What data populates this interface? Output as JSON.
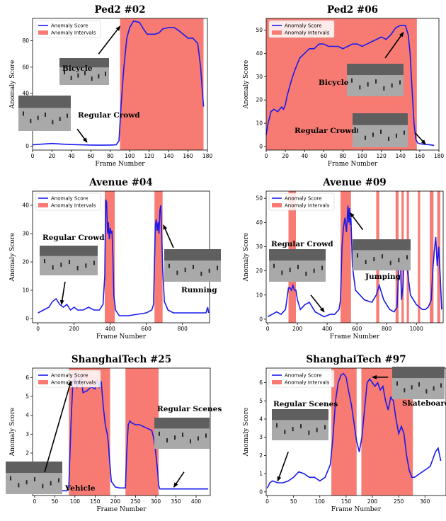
{
  "legend": {
    "score_label": "Anomaly Score",
    "interval_label": "Anomaly Intervals"
  },
  "colors": {
    "score": "#1a1aee",
    "interval": "#f77b72"
  },
  "xlabel": "Frame Number",
  "ylabel": "Anomaly Score",
  "chart_data": [
    {
      "type": "line",
      "title": "Ped2 #02",
      "xlim": [
        0,
        180
      ],
      "ylim": [
        -3,
        97
      ],
      "xticks": [
        0,
        20,
        40,
        60,
        80,
        100,
        120,
        140,
        160,
        180
      ],
      "yticks": [
        0,
        20,
        40,
        60,
        80
      ],
      "intervals": [
        [
          90,
          176
        ]
      ],
      "x": [
        0,
        10,
        20,
        30,
        40,
        50,
        60,
        70,
        80,
        86,
        89,
        91,
        94,
        97,
        100,
        104,
        110,
        115,
        118,
        122,
        126,
        130,
        134,
        140,
        146,
        150,
        155,
        160,
        165,
        170,
        173,
        175,
        176
      ],
      "y": [
        1,
        1.5,
        2,
        1.5,
        1.2,
        1,
        0.8,
        0.7,
        0.8,
        1,
        4,
        30,
        60,
        82,
        90,
        95,
        94,
        88,
        85,
        85,
        85,
        86,
        89,
        90,
        90,
        88,
        85,
        82,
        82,
        78,
        60,
        40,
        30
      ],
      "annotations": [
        {
          "text": "Bicycle",
          "arrow_from": [
            68,
            70
          ],
          "arrow_to": [
            90,
            91
          ]
        },
        {
          "text": "Regular Crowd",
          "arrow_from": [
            46,
            13
          ],
          "arrow_to": [
            56,
            3
          ]
        }
      ]
    },
    {
      "type": "line",
      "title": "Ped2 #06",
      "xlim": [
        0,
        180
      ],
      "ylim": [
        -1.5,
        55
      ],
      "xticks": [
        0,
        20,
        40,
        60,
        80,
        100,
        120,
        140,
        160,
        180
      ],
      "yticks": [
        0,
        10,
        20,
        30,
        40,
        50
      ],
      "intervals": [
        [
          0,
          157
        ]
      ],
      "x": [
        0,
        2,
        5,
        8,
        12,
        16,
        18,
        20,
        22,
        26,
        30,
        35,
        40,
        45,
        50,
        55,
        60,
        65,
        70,
        75,
        80,
        85,
        90,
        95,
        100,
        105,
        110,
        115,
        120,
        125,
        130,
        135,
        140,
        145,
        148,
        150,
        152,
        154,
        156,
        158,
        160,
        165,
        170,
        175
      ],
      "y": [
        5,
        10,
        15,
        16,
        15,
        17,
        16,
        18,
        22,
        28,
        33,
        38,
        40,
        42,
        42,
        44,
        44,
        43,
        43,
        43,
        42,
        43,
        44,
        44,
        43,
        44,
        45,
        46,
        47,
        46,
        48,
        51,
        52,
        52,
        48,
        40,
        25,
        10,
        3,
        1.5,
        1.2,
        1,
        0.8,
        0.5
      ],
      "annotations": [
        {
          "text": "Bicycle",
          "arrow_from": [
            124,
            38
          ],
          "arrow_to": [
            143,
            49
          ]
        },
        {
          "text": "Regular Crowd",
          "arrow_from": [
            155,
            6
          ],
          "arrow_to": [
            166,
            1
          ]
        }
      ]
    },
    {
      "type": "line",
      "title": "Avenue #04",
      "xlim": [
        -30,
        950
      ],
      "ylim": [
        -1.5,
        45
      ],
      "xticks": [
        0,
        200,
        400,
        600,
        800
      ],
      "yticks": [
        0,
        10,
        20,
        30,
        40
      ],
      "intervals": [
        [
          370,
          425
        ],
        [
          645,
          690
        ]
      ],
      "x": [
        0,
        30,
        60,
        80,
        100,
        120,
        140,
        160,
        180,
        200,
        220,
        250,
        280,
        310,
        340,
        360,
        370,
        375,
        380,
        385,
        390,
        395,
        400,
        405,
        410,
        415,
        420,
        430,
        450,
        500,
        550,
        600,
        630,
        640,
        645,
        650,
        655,
        660,
        665,
        670,
        675,
        680,
        685,
        690,
        700,
        720,
        750,
        800,
        850,
        900,
        930,
        940,
        945
      ],
      "y": [
        2,
        3,
        4,
        6,
        7,
        5,
        4,
        5,
        3,
        4,
        3,
        3,
        4,
        3,
        3,
        5,
        15,
        42,
        41,
        30,
        34,
        28,
        32,
        30,
        31,
        22,
        8,
        3,
        1,
        1,
        1.5,
        2,
        3,
        5,
        20,
        33,
        35,
        31,
        34,
        30,
        38,
        40,
        30,
        18,
        6,
        3,
        2,
        2,
        2,
        2,
        2,
        4,
        2
      ],
      "annotations": [
        {
          "text": "Regular Crowd",
          "arrow_from": [
            150,
            13
          ],
          "arrow_to": [
            130,
            5
          ]
        },
        {
          "text": "Running",
          "arrow_from": [
            750,
            25
          ],
          "arrow_to": [
            695,
            33
          ]
        }
      ]
    },
    {
      "type": "line",
      "title": "Avenue #09",
      "xlim": [
        -10,
        1180
      ],
      "ylim": [
        -1.5,
        53
      ],
      "xticks": [
        0,
        200,
        400,
        600,
        800,
        1000
      ],
      "yticks": [
        0,
        10,
        20,
        30,
        40,
        50
      ],
      "intervals": [
        [
          140,
          190
        ],
        [
          490,
          560
        ],
        [
          730,
          750
        ],
        [
          860,
          880
        ],
        [
          900,
          915
        ],
        [
          935,
          950
        ],
        [
          1010,
          1025
        ],
        [
          1090,
          1115
        ],
        [
          1140,
          1160
        ]
      ],
      "x": [
        0,
        30,
        60,
        90,
        120,
        140,
        150,
        160,
        170,
        180,
        190,
        200,
        220,
        250,
        280,
        300,
        320,
        350,
        380,
        400,
        420,
        450,
        480,
        490,
        500,
        510,
        520,
        530,
        540,
        545,
        550,
        555,
        560,
        570,
        590,
        620,
        650,
        700,
        730,
        750,
        780,
        820,
        850,
        870,
        880,
        890,
        900,
        910,
        920,
        930,
        940,
        950,
        960,
        980,
        1000,
        1020,
        1040,
        1060,
        1080,
        1100,
        1110,
        1120,
        1130,
        1140,
        1150,
        1160,
        1170
      ],
      "y": [
        1,
        2,
        3,
        2,
        4,
        13,
        13,
        12,
        14,
        12,
        12,
        8,
        4,
        6,
        7,
        5,
        3,
        2,
        1,
        1.5,
        2,
        2,
        4,
        8,
        30,
        38,
        42,
        36,
        47,
        40,
        46,
        39,
        42,
        22,
        12,
        10,
        8,
        7,
        10,
        14,
        8,
        4,
        3,
        5,
        20,
        28,
        8,
        14,
        31,
        30,
        20,
        15,
        10,
        8,
        6,
        5,
        4,
        4,
        5,
        8,
        20,
        28,
        34,
        22,
        30,
        18,
        4
      ],
      "annotations": [
        {
          "text": "Regular Crowd",
          "arrow_from": [
            290,
            10
          ],
          "arrow_to": [
            380,
            3
          ]
        },
        {
          "text": "Jumping",
          "arrow_from": [
            640,
            37
          ],
          "arrow_to": [
            555,
            44
          ]
        }
      ]
    },
    {
      "type": "line",
      "title": "ShanghaiTech #25",
      "xlim": [
        -5,
        435
      ],
      "ylim": [
        -0.25,
        6.5
      ],
      "xticks": [
        0,
        50,
        100,
        150,
        200,
        250,
        300,
        350,
        400
      ],
      "yticks": [
        0,
        1,
        2,
        3,
        4,
        5,
        6
      ],
      "intervals": [
        [
          85,
          187
        ],
        [
          225,
          307
        ]
      ],
      "x": [
        0,
        40,
        80,
        85,
        90,
        95,
        100,
        105,
        110,
        115,
        120,
        130,
        140,
        150,
        155,
        160,
        165,
        170,
        175,
        180,
        183,
        185,
        190,
        200,
        210,
        220,
        225,
        228,
        232,
        236,
        240,
        250,
        260,
        270,
        280,
        290,
        295,
        300,
        305,
        307,
        310,
        330,
        360,
        400,
        430
      ],
      "y": [
        0,
        0,
        0,
        0.3,
        3.5,
        5.8,
        6,
        5.5,
        5.8,
        6,
        5.2,
        5.3,
        5.5,
        5.4,
        5.9,
        5.5,
        5.8,
        4.5,
        3.5,
        3,
        2.5,
        1.8,
        0.5,
        0.2,
        0.15,
        0.15,
        0.15,
        2,
        3.5,
        3.7,
        3.6,
        3.5,
        3.5,
        3.4,
        3.3,
        3.2,
        2.8,
        2.0,
        1.0,
        0.3,
        0.1,
        0.1,
        0.1,
        0.1,
        0.1
      ],
      "annotations": [
        {
          "text": "Vehicle",
          "arrow_from": [
            25,
            1
          ],
          "arrow_to": [
            90,
            5.8
          ]
        },
        {
          "text": "Regular Scenes",
          "arrow_from": [
            370,
            1
          ],
          "arrow_to": [
            345,
            0.2
          ]
        }
      ]
    },
    {
      "type": "line",
      "title": "ShanghaiTech #97",
      "xlim": [
        -2,
        340
      ],
      "ylim": [
        -0.2,
        6.8
      ],
      "xticks": [
        0,
        50,
        100,
        150,
        200,
        250,
        300
      ],
      "yticks": [
        0,
        1,
        2,
        3,
        4,
        5,
        6
      ],
      "intervals": [
        [
          122,
          170
        ],
        [
          179,
          277
        ]
      ],
      "x": [
        0,
        5,
        10,
        20,
        30,
        40,
        50,
        60,
        70,
        80,
        90,
        100,
        110,
        120,
        125,
        130,
        135,
        140,
        145,
        150,
        155,
        160,
        165,
        170,
        175,
        180,
        185,
        190,
        195,
        200,
        205,
        210,
        215,
        220,
        225,
        230,
        235,
        240,
        245,
        250,
        255,
        260,
        265,
        270,
        275,
        280,
        290,
        300,
        310,
        320,
        325,
        330
      ],
      "y": [
        0.2,
        0.5,
        0.6,
        0.5,
        0.5,
        0.6,
        0.8,
        1.1,
        1.0,
        0.8,
        0.8,
        0.6,
        0.8,
        1.5,
        3.0,
        5.0,
        6.0,
        6.4,
        6.5,
        6.3,
        5.5,
        4.8,
        3.8,
        2.8,
        2.2,
        3.0,
        4.5,
        6.0,
        6.2,
        6.0,
        5.8,
        6.0,
        5.6,
        5.8,
        5.0,
        4.5,
        5.2,
        5.0,
        4.0,
        3.2,
        3.6,
        3.2,
        2.0,
        1.2,
        0.8,
        0.8,
        1.0,
        1.2,
        1.4,
        2.2,
        2.4,
        1.7
      ],
      "annotations": [
        {
          "text": "Regular Scenes",
          "arrow_from": [
            40,
            2.2
          ],
          "arrow_to": [
            20,
            0.6
          ]
        },
        {
          "text": "Skateboard",
          "arrow_from": [
            230,
            6.3
          ],
          "arrow_to": [
            200,
            6.3
          ]
        }
      ]
    }
  ]
}
